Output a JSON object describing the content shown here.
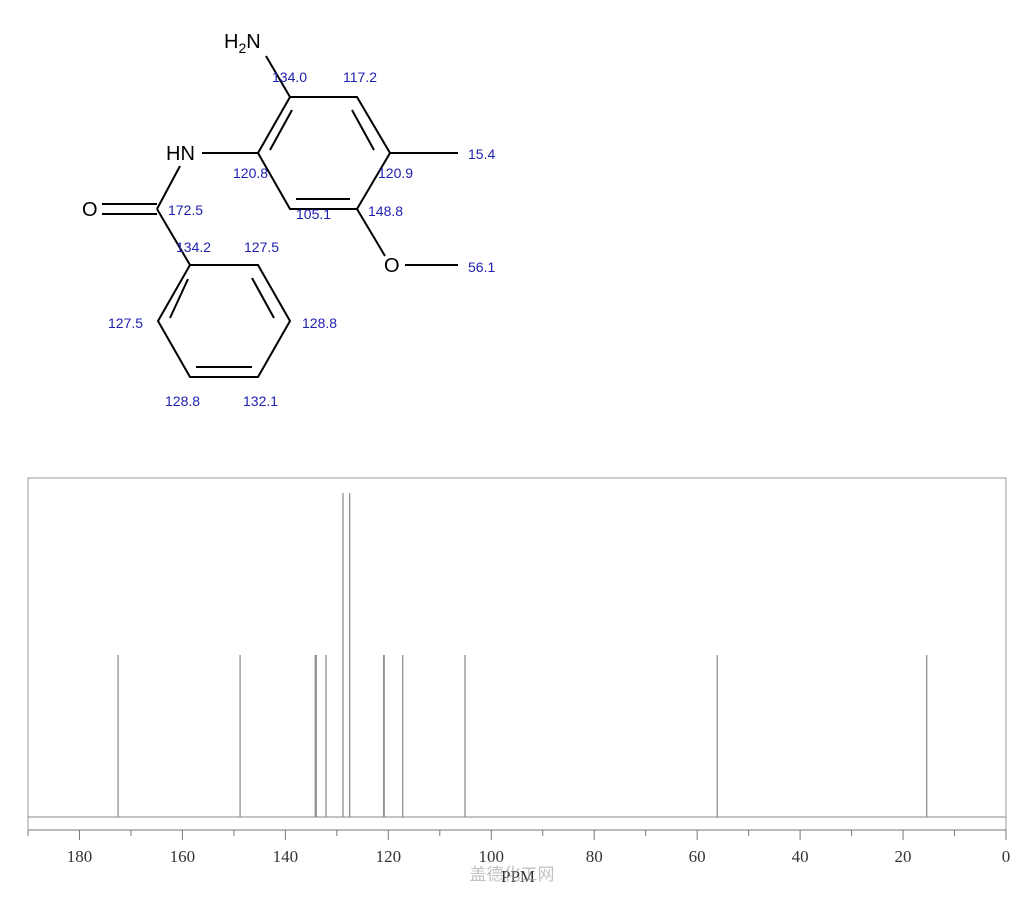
{
  "structure": {
    "amine": {
      "h": "H",
      "sub": "2",
      "n": "N"
    },
    "amide_nh": "HN",
    "carbonyl_o": "O",
    "ether_o": "O",
    "shifts": [
      "134.0",
      "117.2",
      "15.4",
      "120.9",
      "148.8",
      "56.1",
      "120.8",
      "172.5",
      "105.1",
      "134.2",
      "127.5",
      "127.5",
      "128.8",
      "128.8",
      "132.1"
    ]
  },
  "chart_data": {
    "type": "stick",
    "x": [
      172.5,
      148.8,
      134.2,
      134.0,
      132.1,
      128.8,
      127.5,
      120.9,
      120.8,
      117.2,
      105.1,
      56.1,
      15.4
    ],
    "values": [
      1,
      1,
      1,
      1,
      1,
      2,
      2,
      1,
      1,
      1,
      1,
      1,
      1
    ],
    "color": "#888888",
    "xlim": [
      190,
      0
    ],
    "ylim": [
      0,
      2
    ],
    "xticks": [
      180,
      160,
      140,
      120,
      100,
      80,
      60,
      40,
      20,
      0
    ],
    "xminor": [
      190,
      170,
      150,
      130,
      110,
      90,
      70,
      50,
      30,
      10
    ],
    "xlabel": "PPM"
  },
  "watermark": "盖德化工网"
}
